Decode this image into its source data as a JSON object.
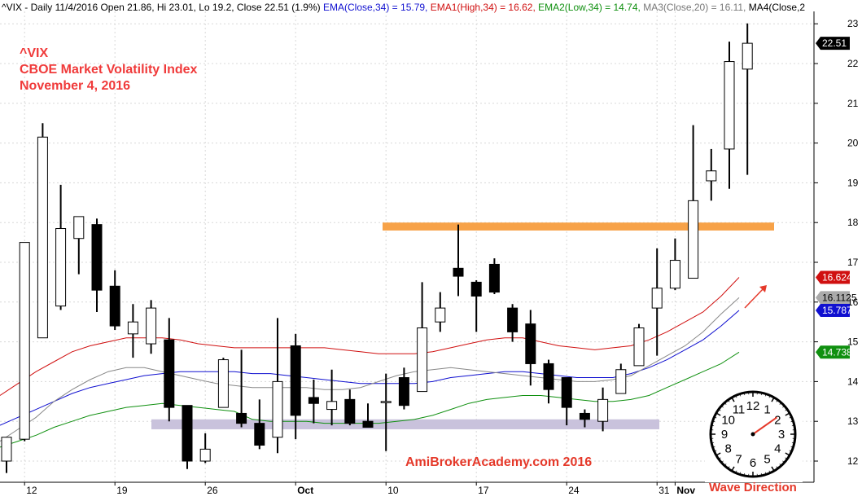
{
  "header": {
    "symbol": "^VIX",
    "period": "Daily",
    "date": "11/4/2016",
    "open_label": "Open",
    "open": "21.86",
    "high_label": "Hi",
    "high": "23.01",
    "low_label": "Lo",
    "low": "19.2",
    "close_label": "Close",
    "close": "22.51",
    "change": "(1.9%)",
    "ema_label": "EMA(Close,34) = 15.79,",
    "ema1_label": "EMA1(High,34) = 16.62,",
    "ema2_label": "EMA2(Low,34) = 14.74,",
    "ma3_label": "MA3(Close,20) = 16.11,",
    "ma4_label": "MA4(Close,2"
  },
  "overlay": {
    "line1": "^VIX",
    "line2": "CBOE Market Volatility Index",
    "line3": "November 4, 2016"
  },
  "watermark": "AmiBrokerAcademy.com  2016",
  "wave_direction_label": "Wave Direction",
  "clock": {
    "numbers": [
      "12",
      "1",
      "2",
      "3",
      "4",
      "5",
      "6",
      "7",
      "8",
      "9",
      "10",
      "11"
    ]
  },
  "colors": {
    "ema": "#1010d0",
    "ema1": "#d01010",
    "ema2": "#109010",
    "ma3": "#888888",
    "resistance_zone": "#f7a248",
    "support_zone": "#c9c2dc",
    "title": "#f03a3a",
    "watermark": "#e5392a"
  },
  "chart_data": {
    "type": "candlestick",
    "title": "^VIX",
    "y_axis_ticks": [
      12,
      13,
      14,
      15,
      16,
      17,
      18,
      19,
      20,
      21,
      22,
      23
    ],
    "ylim": [
      11.5,
      23.2
    ],
    "x_axis_labels": [
      {
        "label": "12",
        "index": 1
      },
      {
        "label": "19",
        "index": 6
      },
      {
        "label": "26",
        "index": 11
      },
      {
        "label": "Oct",
        "index": 16
      },
      {
        "label": "10",
        "index": 21
      },
      {
        "label": "17",
        "index": 26
      },
      {
        "label": "24",
        "index": 31
      },
      {
        "label": "31",
        "index": 36
      },
      {
        "label": "Nov",
        "index": 37
      }
    ],
    "grid": true,
    "candles": [
      {
        "o": 12.0,
        "h": 12.6,
        "l": 11.7,
        "c": 12.6
      },
      {
        "o": 12.55,
        "h": 17.5,
        "l": 12.5,
        "c": 17.5
      },
      {
        "o": 15.1,
        "h": 20.5,
        "l": 15.1,
        "c": 20.15
      },
      {
        "o": 15.9,
        "h": 18.95,
        "l": 15.8,
        "c": 17.85
      },
      {
        "o": 17.6,
        "h": 18.15,
        "l": 16.7,
        "c": 18.15
      },
      {
        "o": 17.95,
        "h": 18.1,
        "l": 15.75,
        "c": 16.3
      },
      {
        "o": 16.4,
        "h": 16.8,
        "l": 15.3,
        "c": 15.4
      },
      {
        "o": 15.2,
        "h": 15.95,
        "l": 14.6,
        "c": 15.5
      },
      {
        "o": 14.95,
        "h": 16.05,
        "l": 14.7,
        "c": 15.85
      },
      {
        "o": 15.05,
        "h": 15.6,
        "l": 13.0,
        "c": 13.35
      },
      {
        "o": 13.4,
        "h": 13.4,
        "l": 11.8,
        "c": 12.0
      },
      {
        "o": 12.0,
        "h": 12.7,
        "l": 11.95,
        "c": 12.3
      },
      {
        "o": 13.35,
        "h": 14.6,
        "l": 13.35,
        "c": 14.55
      },
      {
        "o": 13.2,
        "h": 14.8,
        "l": 12.85,
        "c": 12.95
      },
      {
        "o": 12.95,
        "h": 13.55,
        "l": 12.3,
        "c": 12.4
      },
      {
        "o": 12.6,
        "h": 15.6,
        "l": 12.2,
        "c": 14.0
      },
      {
        "o": 14.9,
        "h": 15.2,
        "l": 12.55,
        "c": 13.15
      },
      {
        "o": 13.6,
        "h": 14.05,
        "l": 12.95,
        "c": 13.45
      },
      {
        "o": 13.3,
        "h": 14.3,
        "l": 12.9,
        "c": 13.5
      },
      {
        "o": 13.55,
        "h": 13.8,
        "l": 12.9,
        "c": 12.95
      },
      {
        "o": 13.0,
        "h": 13.45,
        "l": 12.85,
        "c": 12.85
      },
      {
        "o": 13.5,
        "h": 14.2,
        "l": 12.25,
        "c": 13.5
      },
      {
        "o": 14.1,
        "h": 14.35,
        "l": 13.3,
        "c": 13.4
      },
      {
        "o": 13.75,
        "h": 16.5,
        "l": 13.75,
        "c": 15.35
      },
      {
        "o": 15.5,
        "h": 16.25,
        "l": 15.25,
        "c": 15.85
      },
      {
        "o": 16.85,
        "h": 17.95,
        "l": 16.15,
        "c": 16.65
      },
      {
        "o": 16.5,
        "h": 16.55,
        "l": 15.25,
        "c": 16.15
      },
      {
        "o": 16.95,
        "h": 17.1,
        "l": 16.2,
        "c": 16.25
      },
      {
        "o": 15.85,
        "h": 15.95,
        "l": 15.0,
        "c": 15.25
      },
      {
        "o": 15.45,
        "h": 15.8,
        "l": 13.9,
        "c": 14.45
      },
      {
        "o": 14.45,
        "h": 14.55,
        "l": 13.45,
        "c": 13.8
      },
      {
        "o": 14.1,
        "h": 14.1,
        "l": 12.9,
        "c": 13.35
      },
      {
        "o": 13.2,
        "h": 13.3,
        "l": 12.85,
        "c": 13.05
      },
      {
        "o": 13.0,
        "h": 13.85,
        "l": 12.75,
        "c": 13.55
      },
      {
        "o": 13.7,
        "h": 14.45,
        "l": 13.7,
        "c": 14.3
      },
      {
        "o": 14.4,
        "h": 15.45,
        "l": 14.4,
        "c": 15.35
      },
      {
        "o": 15.85,
        "h": 17.35,
        "l": 14.65,
        "c": 16.35
      },
      {
        "o": 16.35,
        "h": 17.6,
        "l": 16.3,
        "c": 17.05
      },
      {
        "o": 16.6,
        "h": 20.45,
        "l": 16.6,
        "c": 18.55
      },
      {
        "o": 19.05,
        "h": 19.85,
        "l": 18.55,
        "c": 19.3
      },
      {
        "o": 19.85,
        "h": 22.55,
        "l": 18.85,
        "c": 22.05
      },
      {
        "o": 21.86,
        "h": 23.01,
        "l": 19.2,
        "c": 22.51
      }
    ],
    "series": [
      {
        "name": "EMA(Close,34)",
        "key": "ema",
        "last": "15.7876",
        "values": [
          12.9,
          13.1,
          13.3,
          13.5,
          13.7,
          13.85,
          13.95,
          14.05,
          14.15,
          14.2,
          14.25,
          14.25,
          14.25,
          14.25,
          14.2,
          14.2,
          14.15,
          14.1,
          14.05,
          14.0,
          13.95,
          13.95,
          13.95,
          13.95,
          14.0,
          14.1,
          14.15,
          14.2,
          14.25,
          14.25,
          14.2,
          14.15,
          14.1,
          14.1,
          14.1,
          14.2,
          14.35,
          14.55,
          14.8,
          15.05,
          15.4,
          15.79
        ]
      },
      {
        "name": "EMA1(High,34)",
        "key": "ema1",
        "last": "16.6242",
        "values": [
          13.65,
          13.95,
          14.25,
          14.5,
          14.75,
          14.9,
          15.0,
          15.1,
          15.1,
          15.1,
          15.05,
          14.95,
          14.9,
          14.85,
          14.85,
          14.85,
          14.85,
          14.85,
          14.85,
          14.8,
          14.75,
          14.7,
          14.7,
          14.7,
          14.75,
          14.85,
          14.95,
          15.05,
          15.1,
          15.1,
          15.0,
          14.9,
          14.85,
          14.8,
          14.85,
          14.9,
          15.05,
          15.25,
          15.5,
          15.75,
          16.15,
          16.62
        ]
      },
      {
        "name": "EMA2(Low,34)",
        "key": "ema2",
        "last": "14.738",
        "values": [
          12.35,
          12.5,
          12.65,
          12.85,
          13.0,
          13.15,
          13.25,
          13.35,
          13.4,
          13.45,
          13.4,
          13.35,
          13.3,
          13.25,
          13.05,
          13.0,
          13.0,
          13.0,
          12.95,
          12.95,
          12.95,
          12.95,
          13.0,
          13.05,
          13.15,
          13.3,
          13.45,
          13.55,
          13.6,
          13.65,
          13.65,
          13.6,
          13.55,
          13.5,
          13.5,
          13.55,
          13.65,
          13.85,
          14.05,
          14.25,
          14.45,
          14.74
        ]
      },
      {
        "name": "MA3(Close,20)",
        "key": "ma3",
        "last": "16.1125",
        "values": [
          12.5,
          12.8,
          13.1,
          13.5,
          13.8,
          14.05,
          14.25,
          14.35,
          14.35,
          14.25,
          14.15,
          14.05,
          13.95,
          13.9,
          13.85,
          13.85,
          13.85,
          13.85,
          13.8,
          13.8,
          13.85,
          14.0,
          14.15,
          14.25,
          14.3,
          14.35,
          14.3,
          14.25,
          14.2,
          14.15,
          14.1,
          14.05,
          14.0,
          14.0,
          14.05,
          14.15,
          14.4,
          14.65,
          14.9,
          15.25,
          15.7,
          16.11
        ]
      }
    ],
    "annotations": {
      "resistance_zone": [
        17.8,
        18.0
      ],
      "support_zone": [
        12.8,
        13.05
      ],
      "last_close_tag": "22.51"
    }
  }
}
